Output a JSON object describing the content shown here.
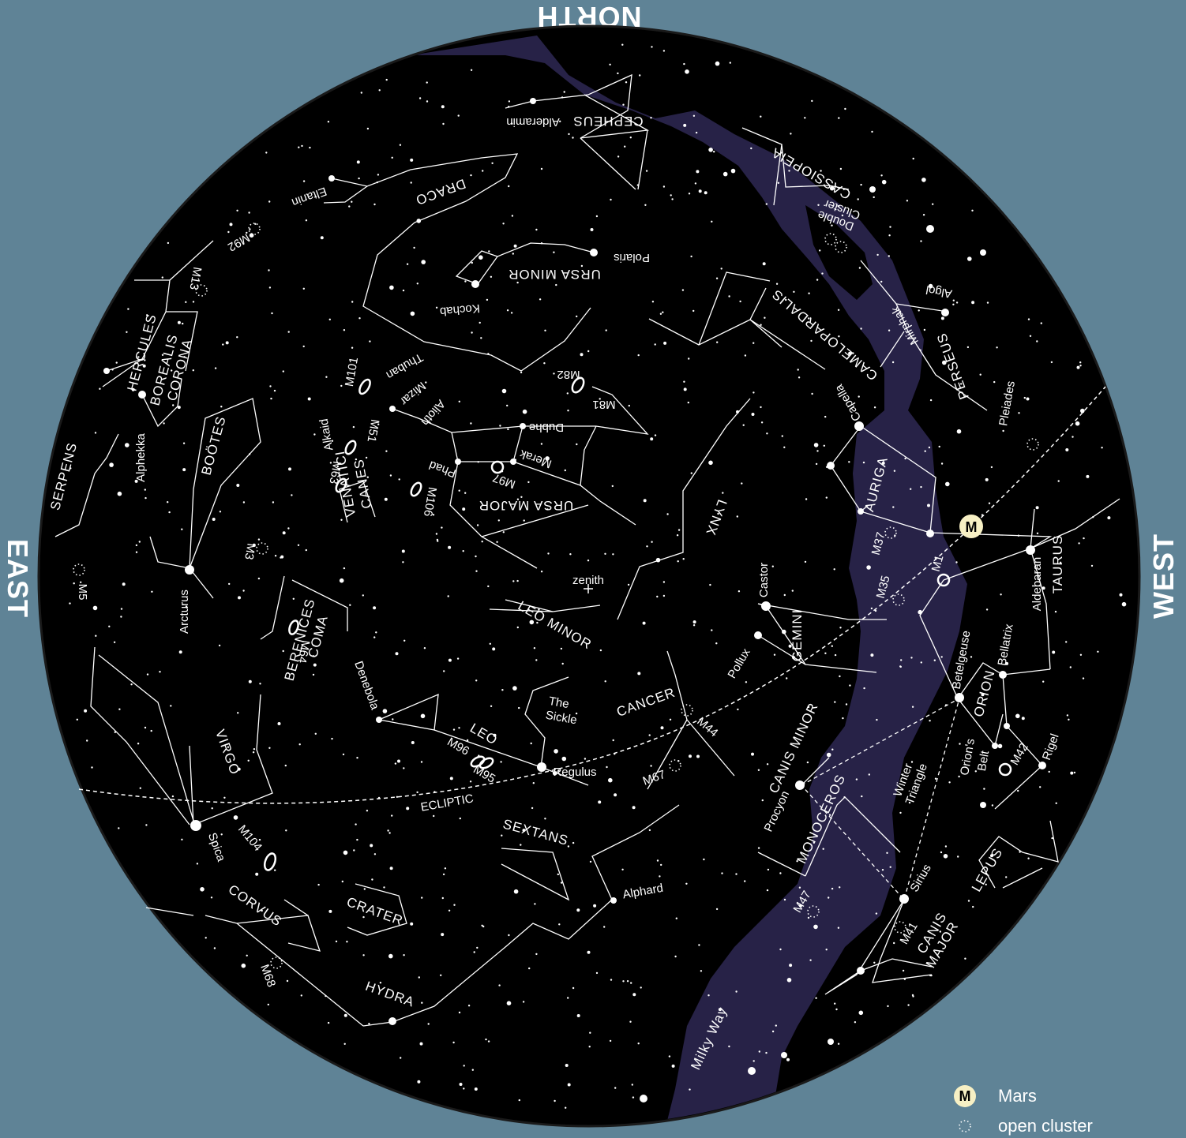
{
  "directions": {
    "north": "NORTH",
    "east": "EAST",
    "west": "WEST"
  },
  "colors": {
    "background": "#5f8396",
    "sky": "#000000",
    "milky_way": "#272247",
    "mars": "#f7f0c4",
    "lines": "#ffffff"
  },
  "labels": {
    "constellations": [
      "CEPHEUS",
      "CASSIOPEIA",
      "DRACO",
      "URSA MINOR",
      "CAMELOPARDALIS",
      "PERSEUS",
      "HERCULES",
      "CORONA",
      "BOREALIS",
      "BOÖTES",
      "SERPENS",
      "CANES",
      "VENATICI",
      "URSA MAJOR",
      "AURIGA",
      "LYNX",
      "TAURUS",
      "COMA",
      "BERENICES",
      "LEO MINOR",
      "GEMINI",
      "ORION",
      "VIRGO",
      "LEO",
      "CANCER",
      "CANIS MINOR",
      "MONOCEROS",
      "SEXTANS",
      "LEPUS",
      "CORVUS",
      "CRATER",
      "HYDRA",
      "CANIS",
      "MAJOR"
    ],
    "stars": [
      "Alderamin",
      "Eltanin",
      "Polaris",
      "Kochab",
      "Algol",
      "Mirphak",
      "Thuban",
      "Capella",
      "Mizar",
      "Alioth",
      "Alkaid",
      "Dubhe",
      "Merak",
      "Phad",
      "Alphekka",
      "Arcturus",
      "Castor",
      "Pollux",
      "Aldebaran",
      "Bellatrix",
      "Betelgeuse",
      "Rigel",
      "Denebola",
      "Regulus",
      "Procyon",
      "Spica",
      "Sirius",
      "Alphard"
    ],
    "objects": [
      "M92",
      "M13",
      "M101",
      "M82",
      "M81",
      "M51",
      "M63",
      "M106",
      "M97",
      "M3",
      "M5",
      "M64",
      "M37",
      "M1",
      "M35",
      "M44",
      "M67",
      "M96",
      "M95",
      "M42",
      "M104",
      "M47",
      "M41",
      "M68",
      "Pleiades"
    ],
    "features": {
      "double_cluster_line1": "Double",
      "double_cluster_line2": "Cluster",
      "zenith": "zenith",
      "ecliptic": "ECLIPTIC",
      "sickle_line1": "The",
      "sickle_line2": "Sickle",
      "winter_line1": "Winter",
      "winter_line2": "Triangle",
      "belt_line1": "Orion's",
      "belt_line2": "Belt",
      "milky_way": "Milky Way",
      "mars_symbol": "M"
    }
  },
  "legend": {
    "mars_symbol": "M",
    "mars_label": "Mars",
    "cluster_label": "open cluster"
  }
}
